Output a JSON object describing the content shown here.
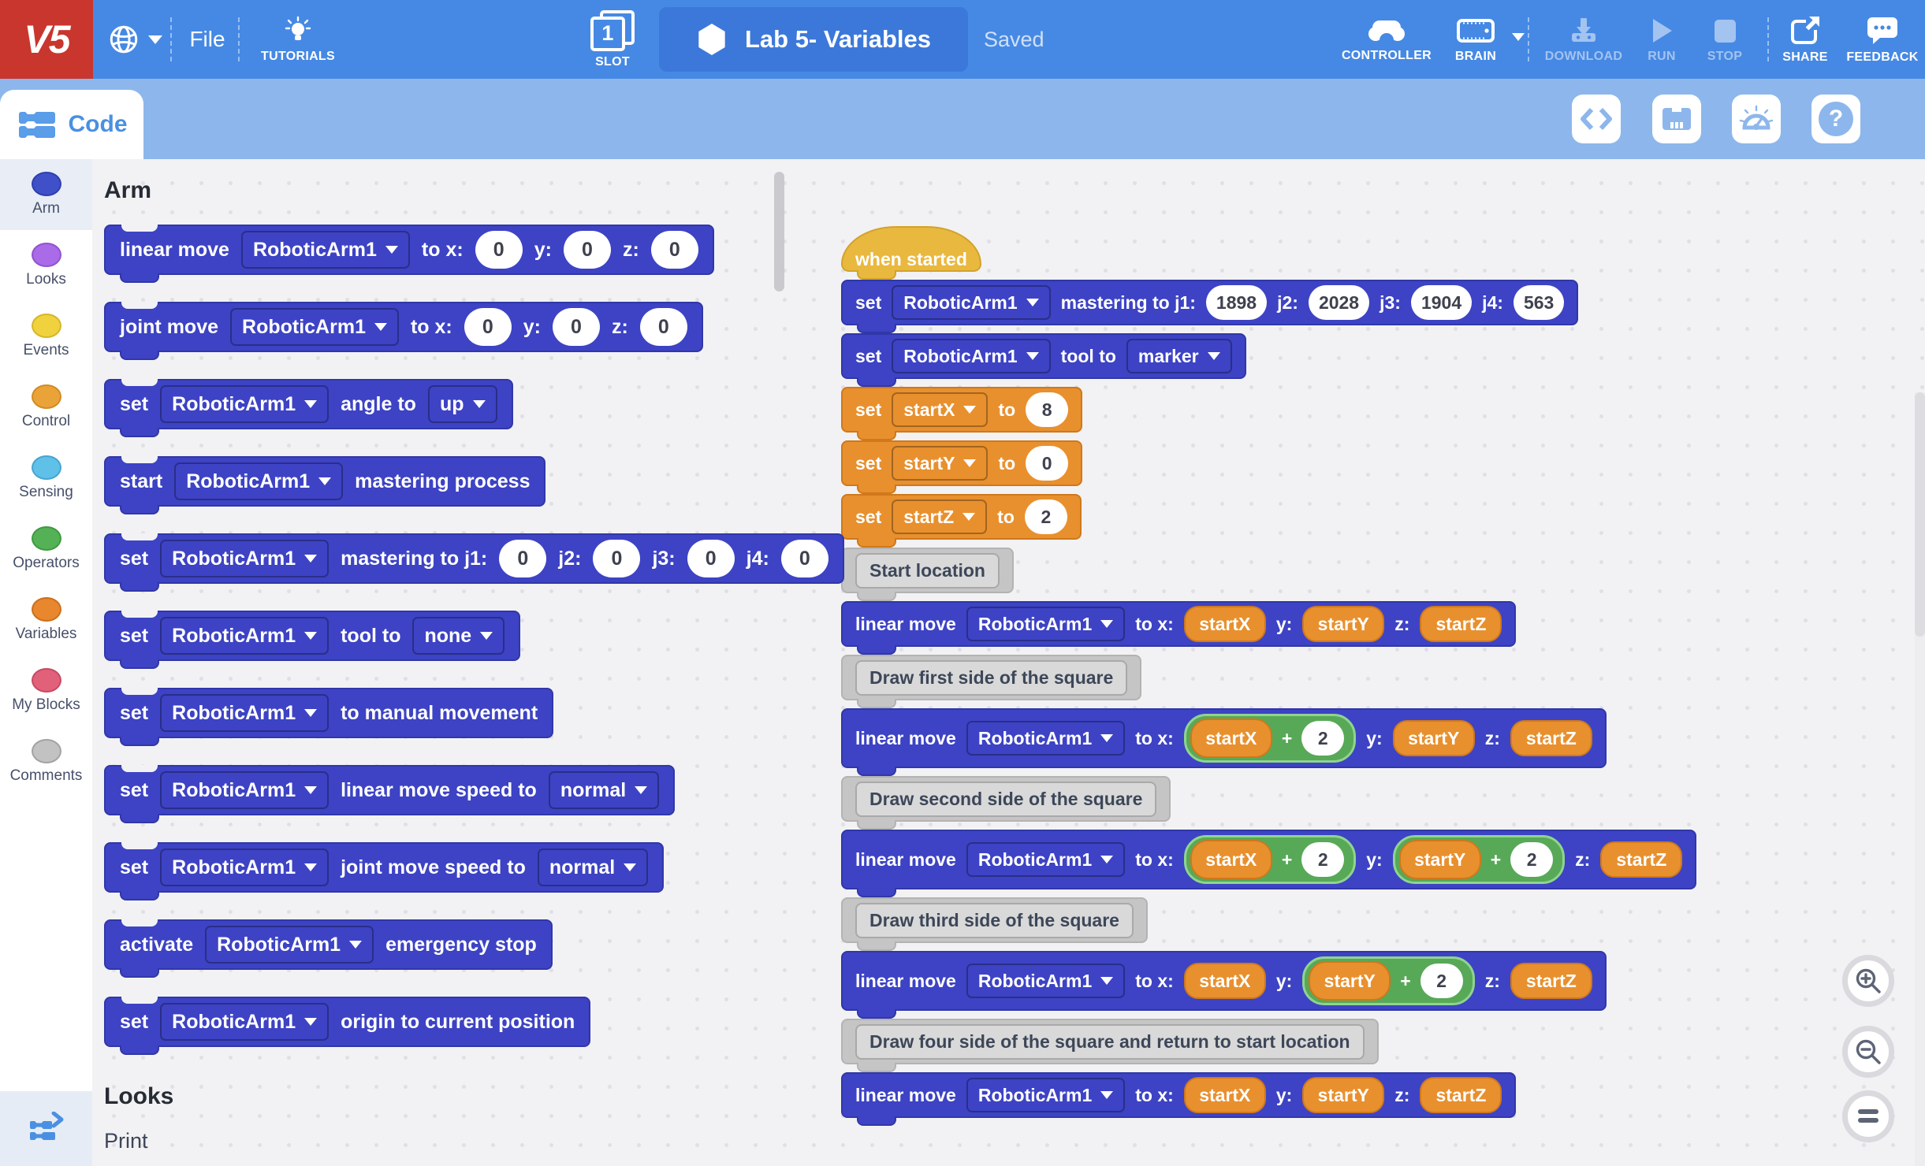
{
  "colors": {
    "header_bg": "#4689e4",
    "logo_bg": "#c9362e",
    "pill_bg": "#3c78da",
    "subheader_bg": "#8db7ec",
    "accent_blue": "#4a90e2",
    "disabled": "#a3c3f0",
    "canvas_bg": "#f2f2f4",
    "arm_fill": "#3d43c4",
    "arm_stroke": "#3137a8",
    "var_fill": "#e8902e",
    "var_stroke": "#d0781b",
    "op_fill": "#57a957",
    "op_stroke": "#90d48e",
    "hat_fill": "#e9b83e",
    "hat_stroke": "#d3a22a",
    "comment_fill": "#c5c5c5",
    "comment_stroke": "#b3b3b3",
    "comment_inner": "#d9d9d9",
    "comment_inner_stroke": "#a9a9a9",
    "num_text": "#3f414e"
  },
  "header": {
    "logo": "V5",
    "file": "File",
    "tutorials": "TUTORIALS",
    "slot_number": "1",
    "slot_label": "SLOT",
    "project_name": "Lab 5- Variables",
    "saved": "Saved",
    "controller": "CONTROLLER",
    "brain": "BRAIN",
    "download": "DOWNLOAD",
    "run": "RUN",
    "stop": "STOP",
    "share": "SHARE",
    "feedback": "FEEDBACK"
  },
  "subheader": {
    "code_tab": "Code"
  },
  "sidebar": {
    "categories": [
      {
        "label": "Arm",
        "fill": "#4050c8",
        "stroke": "#2f3fae",
        "selected": true
      },
      {
        "label": "Looks",
        "fill": "#a96be8",
        "stroke": "#8f54cf",
        "selected": false
      },
      {
        "label": "Events",
        "fill": "#f0d23f",
        "stroke": "#d6b62a",
        "selected": false
      },
      {
        "label": "Control",
        "fill": "#eaa339",
        "stroke": "#d18b24",
        "selected": false
      },
      {
        "label": "Sensing",
        "fill": "#5fc0e8",
        "stroke": "#45a5d2",
        "selected": false
      },
      {
        "label": "Operators",
        "fill": "#55b155",
        "stroke": "#3f9a40",
        "selected": false
      },
      {
        "label": "Variables",
        "fill": "#e8872e",
        "stroke": "#cc6f1b",
        "selected": false
      },
      {
        "label": "My Blocks",
        "fill": "#e2617a",
        "stroke": "#c74a63",
        "selected": false
      },
      {
        "label": "Comments",
        "fill": "#c2c2c2",
        "stroke": "#a3a3a3",
        "selected": false
      }
    ]
  },
  "palette": {
    "section_title": "Arm",
    "blocks": [
      {
        "name": "linear-move",
        "segments": [
          [
            "l",
            "linear move"
          ],
          [
            "d",
            "RoboticArm1"
          ],
          [
            "l",
            "to x:"
          ],
          [
            "n",
            "0"
          ],
          [
            "l",
            "y:"
          ],
          [
            "n",
            "0"
          ],
          [
            "l",
            "z:"
          ],
          [
            "n",
            "0"
          ]
        ]
      },
      {
        "name": "joint-move",
        "segments": [
          [
            "l",
            "joint move"
          ],
          [
            "d",
            "RoboticArm1"
          ],
          [
            "l",
            "to x:"
          ],
          [
            "n",
            "0"
          ],
          [
            "l",
            "y:"
          ],
          [
            "n",
            "0"
          ],
          [
            "l",
            "z:"
          ],
          [
            "n",
            "0"
          ]
        ]
      },
      {
        "name": "set-angle",
        "segments": [
          [
            "l",
            "set"
          ],
          [
            "d",
            "RoboticArm1"
          ],
          [
            "l",
            "angle to"
          ],
          [
            "d",
            "up"
          ]
        ]
      },
      {
        "name": "start-mastering-process",
        "segments": [
          [
            "l",
            "start"
          ],
          [
            "d",
            "RoboticArm1"
          ],
          [
            "l",
            "mastering process"
          ]
        ]
      },
      {
        "name": "set-mastering",
        "segments": [
          [
            "l",
            "set"
          ],
          [
            "d",
            "RoboticArm1"
          ],
          [
            "l",
            "mastering to j1:"
          ],
          [
            "n",
            "0"
          ],
          [
            "l",
            "j2:"
          ],
          [
            "n",
            "0"
          ],
          [
            "l",
            "j3:"
          ],
          [
            "n",
            "0"
          ],
          [
            "l",
            "j4:"
          ],
          [
            "n",
            "0"
          ]
        ]
      },
      {
        "name": "set-tool",
        "segments": [
          [
            "l",
            "set"
          ],
          [
            "d",
            "RoboticArm1"
          ],
          [
            "l",
            "tool to"
          ],
          [
            "d",
            "none"
          ]
        ]
      },
      {
        "name": "set-manual-movement",
        "segments": [
          [
            "l",
            "set"
          ],
          [
            "d",
            "RoboticArm1"
          ],
          [
            "l",
            "to manual movement"
          ]
        ]
      },
      {
        "name": "set-linear-move-speed",
        "segments": [
          [
            "l",
            "set"
          ],
          [
            "d",
            "RoboticArm1"
          ],
          [
            "l",
            "linear move speed to"
          ],
          [
            "d",
            "normal"
          ]
        ]
      },
      {
        "name": "set-joint-move-speed",
        "segments": [
          [
            "l",
            "set"
          ],
          [
            "d",
            "RoboticArm1"
          ],
          [
            "l",
            "joint move speed to"
          ],
          [
            "d",
            "normal"
          ]
        ]
      },
      {
        "name": "activate-emergency-stop",
        "segments": [
          [
            "l",
            "activate"
          ],
          [
            "d",
            "RoboticArm1"
          ],
          [
            "l",
            "emergency stop"
          ]
        ]
      },
      {
        "name": "set-origin",
        "segments": [
          [
            "l",
            "set"
          ],
          [
            "d",
            "RoboticArm1"
          ],
          [
            "l",
            "origin to current position"
          ]
        ]
      }
    ],
    "footer_section": "Looks",
    "footer_item": "Print"
  },
  "canvas": {
    "scripts": [
      {
        "t": "hat",
        "name": "when-started",
        "text": "when started"
      },
      {
        "t": "stack",
        "kind": "arm",
        "name": "set-mastering",
        "segments": [
          [
            "l",
            "set"
          ],
          [
            "d",
            "RoboticArm1"
          ],
          [
            "l",
            "mastering to j1:"
          ],
          [
            "n",
            "1898"
          ],
          [
            "l",
            "j2:"
          ],
          [
            "n",
            "2028"
          ],
          [
            "l",
            "j3:"
          ],
          [
            "n",
            "1904"
          ],
          [
            "l",
            "j4:"
          ],
          [
            "n",
            "563"
          ]
        ]
      },
      {
        "t": "stack",
        "kind": "arm",
        "name": "set-tool-marker",
        "segments": [
          [
            "l",
            "set"
          ],
          [
            "d",
            "RoboticArm1"
          ],
          [
            "l",
            "tool to"
          ],
          [
            "d",
            "marker"
          ]
        ]
      },
      {
        "t": "stack",
        "kind": "var",
        "name": "set-startx",
        "segments": [
          [
            "l",
            "set"
          ],
          [
            "d",
            "startX"
          ],
          [
            "l",
            "to"
          ],
          [
            "n",
            "8"
          ]
        ]
      },
      {
        "t": "stack",
        "kind": "var",
        "name": "set-starty",
        "segments": [
          [
            "l",
            "set"
          ],
          [
            "d",
            "startY"
          ],
          [
            "l",
            "to"
          ],
          [
            "n",
            "0"
          ]
        ]
      },
      {
        "t": "stack",
        "kind": "var",
        "name": "set-startz",
        "segments": [
          [
            "l",
            "set"
          ],
          [
            "d",
            "startZ"
          ],
          [
            "l",
            "to"
          ],
          [
            "n",
            "2"
          ]
        ]
      },
      {
        "t": "comment",
        "name": "comment-start-location",
        "text": "Start location"
      },
      {
        "t": "stack",
        "kind": "arm",
        "name": "linear-move-1",
        "segments": [
          [
            "l",
            "linear move"
          ],
          [
            "d",
            "RoboticArm1"
          ],
          [
            "l",
            "to x:"
          ],
          [
            "v",
            "startX"
          ],
          [
            "l",
            "y:"
          ],
          [
            "v",
            "startY"
          ],
          [
            "l",
            "z:"
          ],
          [
            "v",
            "startZ"
          ]
        ]
      },
      {
        "t": "comment",
        "name": "comment-first-side",
        "text": "Draw first side of the square"
      },
      {
        "t": "stack",
        "kind": "arm",
        "name": "linear-move-2",
        "segments": [
          [
            "l",
            "linear move"
          ],
          [
            "d",
            "RoboticArm1"
          ],
          [
            "l",
            "to x:"
          ],
          [
            "o",
            [
              [
                "v",
                "startX"
              ],
              [
                "l",
                "+"
              ],
              [
                "n",
                "2"
              ]
            ]
          ],
          [
            "l",
            "y:"
          ],
          [
            "v",
            "startY"
          ],
          [
            "l",
            "z:"
          ],
          [
            "v",
            "startZ"
          ]
        ]
      },
      {
        "t": "comment",
        "name": "comment-second-side",
        "text": "Draw second side of the square"
      },
      {
        "t": "stack",
        "kind": "arm",
        "name": "linear-move-3",
        "segments": [
          [
            "l",
            "linear move"
          ],
          [
            "d",
            "RoboticArm1"
          ],
          [
            "l",
            "to x:"
          ],
          [
            "o",
            [
              [
                "v",
                "startX"
              ],
              [
                "l",
                "+"
              ],
              [
                "n",
                "2"
              ]
            ]
          ],
          [
            "l",
            "y:"
          ],
          [
            "o",
            [
              [
                "v",
                "startY"
              ],
              [
                "l",
                "+"
              ],
              [
                "n",
                "2"
              ]
            ]
          ],
          [
            "l",
            "z:"
          ],
          [
            "v",
            "startZ"
          ]
        ]
      },
      {
        "t": "comment",
        "name": "comment-third-side",
        "text": "Draw third side of the square"
      },
      {
        "t": "stack",
        "kind": "arm",
        "name": "linear-move-4",
        "segments": [
          [
            "l",
            "linear move"
          ],
          [
            "d",
            "RoboticArm1"
          ],
          [
            "l",
            "to x:"
          ],
          [
            "v",
            "startX"
          ],
          [
            "l",
            "y:"
          ],
          [
            "o",
            [
              [
                "v",
                "startY"
              ],
              [
                "l",
                "+"
              ],
              [
                "n",
                "2"
              ]
            ]
          ],
          [
            "l",
            "z:"
          ],
          [
            "v",
            "startZ"
          ]
        ]
      },
      {
        "t": "comment",
        "name": "comment-fourth-side",
        "text": "Draw four side of the square and return to start location"
      },
      {
        "t": "stack",
        "kind": "arm",
        "name": "linear-move-5",
        "segments": [
          [
            "l",
            "linear move"
          ],
          [
            "d",
            "RoboticArm1"
          ],
          [
            "l",
            "to x:"
          ],
          [
            "v",
            "startX"
          ],
          [
            "l",
            "y:"
          ],
          [
            "v",
            "startY"
          ],
          [
            "l",
            "z:"
          ],
          [
            "v",
            "startZ"
          ]
        ]
      }
    ]
  }
}
